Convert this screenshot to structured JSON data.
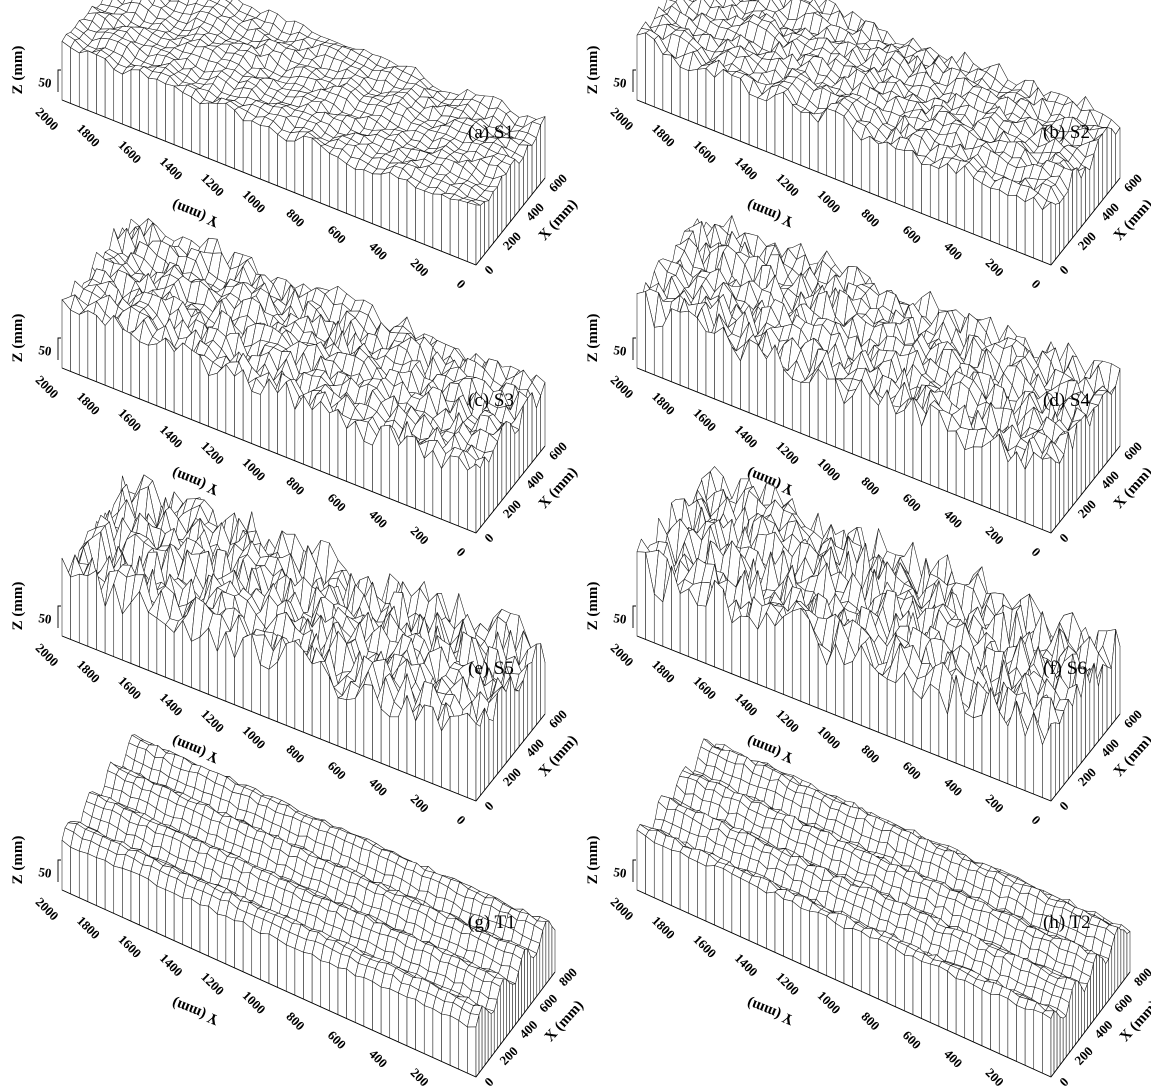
{
  "axes": {
    "z_label": "Z (mm)",
    "z_tick": "50",
    "y_label": "Y (mm)",
    "x_label": "X (mm)"
  },
  "panels": [
    {
      "label": "(a) S1",
      "surface": "S1",
      "amplitude": 0.35,
      "roughness": 0.25,
      "y_ticks": [
        "2000",
        "1800",
        "1600",
        "1400",
        "1200",
        "1000",
        "800",
        "600",
        "400",
        "200",
        "0"
      ],
      "x_ticks": [
        "0",
        "200",
        "400",
        "600"
      ],
      "x_max": 600
    },
    {
      "label": "(b) S2",
      "surface": "S2",
      "amplitude": 0.55,
      "roughness": 0.45,
      "y_ticks": [
        "2000",
        "1800",
        "1600",
        "1400",
        "1200",
        "1000",
        "800",
        "600",
        "400",
        "200",
        "0"
      ],
      "x_ticks": [
        "0",
        "200",
        "400",
        "600"
      ],
      "x_max": 600
    },
    {
      "label": "(c) S3",
      "surface": "S3",
      "amplitude": 0.75,
      "roughness": 0.6,
      "y_ticks": [
        "2000",
        "1800",
        "1600",
        "1400",
        "1200",
        "1000",
        "800",
        "600",
        "400",
        "200",
        "0"
      ],
      "x_ticks": [
        "0",
        "200",
        "400",
        "600"
      ],
      "x_max": 600
    },
    {
      "label": "(d) S4",
      "surface": "S4",
      "amplitude": 0.9,
      "roughness": 0.7,
      "y_ticks": [
        "2000",
        "1800",
        "1600",
        "1400",
        "1200",
        "1000",
        "800",
        "600",
        "400",
        "200",
        "0"
      ],
      "x_ticks": [
        "0",
        "200",
        "400",
        "600"
      ],
      "x_max": 600
    },
    {
      "label": "(e) S5",
      "surface": "S5",
      "amplitude": 1.0,
      "roughness": 0.85,
      "y_ticks": [
        "2000",
        "1800",
        "1600",
        "1400",
        "1200",
        "1000",
        "800",
        "600",
        "400",
        "200",
        "0"
      ],
      "x_ticks": [
        "0",
        "200",
        "400",
        "600"
      ],
      "x_max": 600
    },
    {
      "label": "(f) S6",
      "surface": "S6",
      "amplitude": 1.1,
      "roughness": 0.9,
      "y_ticks": [
        "2000",
        "1800",
        "1600",
        "1400",
        "1200",
        "1000",
        "800",
        "600",
        "400",
        "200",
        "0"
      ],
      "x_ticks": [
        "0",
        "200",
        "400",
        "600"
      ],
      "x_max": 600
    },
    {
      "label": "(g) T1",
      "surface": "T1",
      "amplitude": 0.5,
      "roughness": 0.15,
      "y_ticks": [
        "2000",
        "1800",
        "1600",
        "1400",
        "1200",
        "1000",
        "800",
        "600",
        "400",
        "200",
        "0"
      ],
      "x_ticks": [
        "0",
        "200",
        "400",
        "600",
        "800"
      ],
      "x_max": 800
    },
    {
      "label": "(h) T2",
      "surface": "T2",
      "amplitude": 0.5,
      "roughness": 0.2,
      "y_ticks": [
        "2000",
        "1800",
        "1600",
        "1400",
        "1200",
        "1000",
        "800",
        "600",
        "400",
        "200",
        "0"
      ],
      "x_ticks": [
        "0",
        "200",
        "400",
        "600",
        "800"
      ],
      "x_max": 800
    }
  ]
}
